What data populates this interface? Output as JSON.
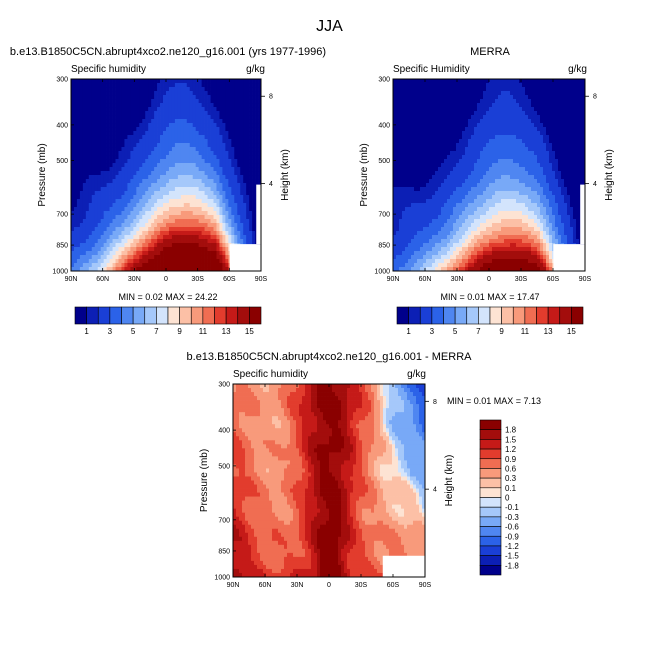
{
  "figure_title": "JJA",
  "panels": [
    {
      "title": "b.e13.B1850C5CN.abrupt4xco2.ne120_g16.001 (yrs 1977-1996)",
      "left_label": "Specific humidity",
      "right_label": "g/kg",
      "stats": "MIN =  0.02  MAX =  24.22"
    },
    {
      "title": "MERRA",
      "left_label": "Specific Humidity",
      "right_label": "g/kg",
      "stats": "MIN =  0.01  MAX =  17.47"
    },
    {
      "title": "b.e13.B1850C5CN.abrupt4xco2.ne120_g16.001 - MERRA",
      "left_label": "Specific humidity",
      "right_label": "g/kg",
      "stats": "MIN =  0.01  MAX =  7.13"
    }
  ],
  "colors": {
    "abs_levels": [
      "#00008b",
      "#0c1fb5",
      "#1a3fd6",
      "#2b62e8",
      "#4f86f1",
      "#78a9f7",
      "#a5c8fa",
      "#d3e4fc",
      "#fde3d3",
      "#fcc0a6",
      "#f89a7b",
      "#f06d52",
      "#e23c2d",
      "#c51a18",
      "#a30d0c",
      "#8a0000"
    ],
    "diff_levels": [
      "#00008b",
      "#0c1fb5",
      "#1a3fd6",
      "#2b62e8",
      "#4f86f1",
      "#78a9f7",
      "#a5c8fa",
      "#d3e4fc",
      "#ffffff",
      "#fde3d3",
      "#fcc0a6",
      "#f89a7b",
      "#f06d52",
      "#e23c2d",
      "#c51a18",
      "#a30d0c",
      "#8a0000"
    ]
  },
  "chart_data": [
    {
      "type": "heatmap",
      "title": "b.e13.B1850C5CN.abrupt4xco2.ne120_g16.001 (yrs 1977-1996)",
      "variable": "Specific humidity",
      "units": "g/kg",
      "xlabel": "",
      "ylabel": "Pressure (mb)",
      "y2label": "Height (km)",
      "x_ticks": [
        "90N",
        "60N",
        "30N",
        "0",
        "30S",
        "60S",
        "90S"
      ],
      "y_ticks": [
        "300",
        "400",
        "500",
        "700",
        "850",
        "1000"
      ],
      "y2_ticks": [
        "8",
        "4"
      ],
      "ylim": [
        1000,
        300
      ],
      "min": 0.02,
      "max": 24.22,
      "colorbar_labels": [
        "1",
        "3",
        "5",
        "7",
        "9",
        "11",
        "13",
        "15"
      ]
    },
    {
      "type": "heatmap",
      "title": "MERRA",
      "variable": "Specific Humidity",
      "units": "g/kg",
      "xlabel": "",
      "ylabel": "Pressure (mb)",
      "y2label": "Height (km)",
      "x_ticks": [
        "90N",
        "60N",
        "30N",
        "0",
        "30S",
        "60S",
        "90S"
      ],
      "y_ticks": [
        "300",
        "400",
        "500",
        "700",
        "850",
        "1000"
      ],
      "y2_ticks": [
        "8",
        "4"
      ],
      "ylim": [
        1000,
        300
      ],
      "min": 0.01,
      "max": 17.47,
      "colorbar_labels": [
        "1",
        "3",
        "5",
        "7",
        "9",
        "11",
        "13",
        "15"
      ]
    },
    {
      "type": "heatmap",
      "title": "b.e13.B1850C5CN.abrupt4xco2.ne120_g16.001 - MERRA",
      "variable": "Specific humidity",
      "units": "g/kg",
      "xlabel": "",
      "ylabel": "Pressure (mb)",
      "y2label": "Height (km)",
      "x_ticks": [
        "90N",
        "60N",
        "30N",
        "0",
        "30S",
        "60S",
        "90S"
      ],
      "y_ticks": [
        "300",
        "400",
        "500",
        "700",
        "850",
        "1000"
      ],
      "y2_ticks": [
        "8",
        "4"
      ],
      "ylim": [
        1000,
        300
      ],
      "min": 0.01,
      "max": 7.13,
      "colorbar_labels": [
        "1.8",
        "1.5",
        "1.2",
        "0.9",
        "0.6",
        "0.3",
        "0.1",
        "0",
        "-0.1",
        "-0.3",
        "-0.6",
        "-0.9",
        "-1.2",
        "-1.5",
        "-1.8"
      ]
    }
  ]
}
